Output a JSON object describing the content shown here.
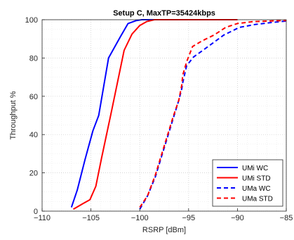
{
  "chart_data": {
    "type": "line",
    "title": "Setup C, MaxTP=35424kbps",
    "xlabel": "RSRP [dBm]",
    "ylabel": "Throughput %",
    "xlim": [
      -110,
      -85
    ],
    "ylim": [
      0,
      100
    ],
    "xticks": [
      -110,
      -105,
      -100,
      -95,
      -90,
      -85
    ],
    "xtick_labels": [
      "−110",
      "−105",
      "−100",
      "−95",
      "−90",
      "−85"
    ],
    "yticks": [
      0,
      20,
      40,
      60,
      80,
      100
    ],
    "ytick_labels": [
      "0",
      "20",
      "40",
      "60",
      "80",
      "100"
    ],
    "grid": true,
    "legend_position": "bottom-right",
    "series": [
      {
        "name": "UMi WC",
        "color": "#0000ff",
        "style": "solid",
        "x": [
          -107.0,
          -106.4,
          -105.6,
          -104.8,
          -104.2,
          -103.2,
          -102.0,
          -101.2,
          -100.4,
          -99.8,
          -99.0,
          -97.0,
          -90.0
        ],
        "y": [
          2,
          11,
          27,
          42,
          50,
          80,
          91,
          98,
          99.5,
          100,
          100,
          100,
          100
        ]
      },
      {
        "name": "UMi STD",
        "color": "#ff0000",
        "style": "solid",
        "x": [
          -106.8,
          -105.8,
          -105.1,
          -104.5,
          -103.9,
          -102.9,
          -101.6,
          -100.8,
          -100.0,
          -99.3,
          -98.5,
          -97.0,
          -90.0
        ],
        "y": [
          1,
          4,
          6,
          13,
          28,
          52,
          84,
          92.5,
          97,
          99,
          100,
          100,
          100
        ]
      },
      {
        "name": "UMa WC",
        "color": "#0000ff",
        "style": "dashed",
        "x": [
          -100.0,
          -99.2,
          -98.4,
          -97.8,
          -97.2,
          -96.6,
          -96.0,
          -95.7,
          -95.6,
          -95.2,
          -94.5,
          -93.0,
          -91.4,
          -89.8,
          -88.2,
          -86.6,
          -85.0
        ],
        "y": [
          1,
          8,
          18,
          28,
          38,
          48,
          58,
          64,
          67,
          76,
          80.5,
          86,
          92,
          96,
          97.5,
          98.5,
          99.3
        ]
      },
      {
        "name": "UMa STD",
        "color": "#ff0000",
        "style": "dashed",
        "x": [
          -100.0,
          -99.2,
          -98.4,
          -97.8,
          -97.2,
          -96.6,
          -96.0,
          -95.7,
          -95.6,
          -95.2,
          -94.6,
          -93.6,
          -92.4,
          -91.2,
          -90.0,
          -88.4,
          -86.8,
          -85.0
        ],
        "y": [
          2,
          8,
          19,
          29,
          39,
          49,
          58,
          66,
          71,
          78,
          86,
          89,
          92,
          96,
          98,
          99,
          99.3,
          99.6
        ]
      }
    ]
  }
}
